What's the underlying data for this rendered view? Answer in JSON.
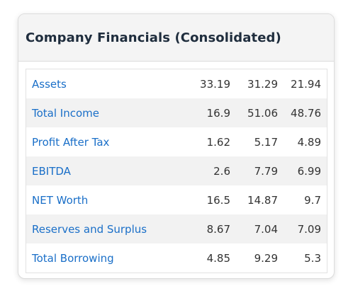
{
  "card": {
    "title": "Company Financials (Consolidated)"
  },
  "rows": [
    {
      "label": "Assets",
      "values": [
        "33.19",
        "31.29",
        "21.94"
      ]
    },
    {
      "label": "Total Income",
      "values": [
        "16.9",
        "51.06",
        "48.76"
      ]
    },
    {
      "label": "Profit After Tax",
      "values": [
        "1.62",
        "5.17",
        "4.89"
      ]
    },
    {
      "label": "EBITDA",
      "values": [
        "2.6",
        "7.79",
        "6.99"
      ]
    },
    {
      "label": "NET Worth",
      "values": [
        "16.5",
        "14.87",
        "9.7"
      ]
    },
    {
      "label": "Reserves and Surplus",
      "values": [
        "8.67",
        "7.04",
        "7.09"
      ]
    },
    {
      "label": "Total Borrowing",
      "values": [
        "4.85",
        "9.29",
        "5.3"
      ]
    }
  ],
  "colors": {
    "link": "#1a6fc8",
    "header_bg": "#f4f4f4",
    "alt_row_bg": "#f2f2f2",
    "title": "#1f2d3d"
  }
}
